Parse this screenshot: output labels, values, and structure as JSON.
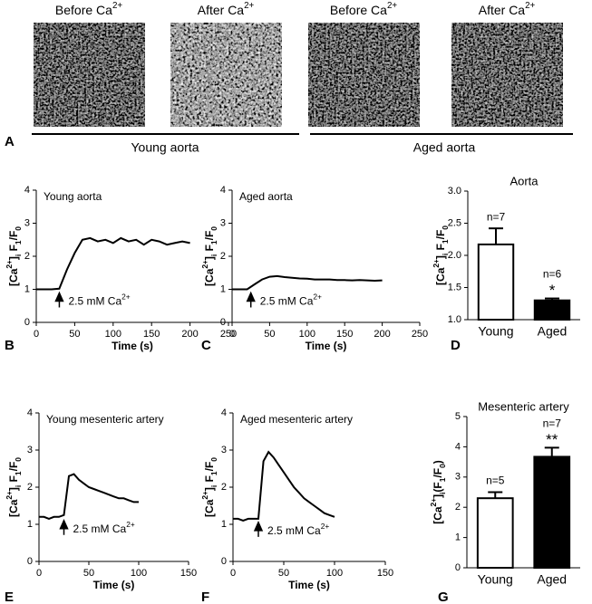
{
  "panel_a": {
    "label": "A",
    "images": [
      {
        "title": [
          {
            "text": "Before Ca"
          },
          {
            "text": "2+",
            "shift": "sup"
          }
        ]
      },
      {
        "title": [
          {
            "text": "After Ca"
          },
          {
            "text": "2+",
            "shift": "sup"
          }
        ]
      },
      {
        "title": [
          {
            "text": "Before Ca"
          },
          {
            "text": "2+",
            "shift": "sup"
          }
        ]
      },
      {
        "title": [
          {
            "text": "After Ca"
          },
          {
            "text": "2+",
            "shift": "sup"
          }
        ]
      }
    ],
    "groups": [
      "Young aorta",
      "Aged aorta"
    ]
  },
  "chart_data": [
    {
      "type": "line",
      "label": "B",
      "title": "Young aorta",
      "xlabel": "Time (s)",
      "ylabel": [
        {
          "text": "[Ca"
        },
        {
          "text": "2+",
          "shift": "sup"
        },
        {
          "text": "]"
        },
        {
          "text": "i",
          "shift": "sub"
        },
        {
          "text": " F"
        },
        {
          "text": "1",
          "shift": "sub"
        },
        {
          "text": "/F"
        },
        {
          "text": "0",
          "shift": "sub"
        }
      ],
      "x": [
        0,
        10,
        20,
        30,
        40,
        50,
        60,
        70,
        80,
        90,
        100,
        110,
        120,
        130,
        140,
        150,
        160,
        170,
        180,
        190,
        200
      ],
      "values": [
        1,
        1,
        1,
        1.02,
        1.6,
        2.1,
        2.5,
        2.55,
        2.45,
        2.5,
        2.4,
        2.55,
        2.45,
        2.5,
        2.35,
        2.5,
        2.45,
        2.35,
        2.4,
        2.45,
        2.4
      ],
      "color": "#000000",
      "xlim": [
        0,
        250
      ],
      "xticks": [
        0,
        50,
        100,
        150,
        200,
        250
      ],
      "ylim": [
        0,
        4
      ],
      "yticks": [
        0,
        1,
        2,
        3,
        4
      ],
      "annotation": {
        "x": 30,
        "y": 1,
        "text": [
          {
            "text": "2.5 mM Ca"
          },
          {
            "text": "2+",
            "shift": "sup"
          }
        ]
      }
    },
    {
      "type": "line",
      "label": "C",
      "title": "Aged aorta",
      "xlabel": "Time (s)",
      "ylabel": [
        {
          "text": "[Ca"
        },
        {
          "text": "2+",
          "shift": "sup"
        },
        {
          "text": "]"
        },
        {
          "text": "i",
          "shift": "sub"
        },
        {
          "text": " F"
        },
        {
          "text": "1",
          "shift": "sub"
        },
        {
          "text": "/F"
        },
        {
          "text": "0",
          "shift": "sub"
        }
      ],
      "x": [
        0,
        10,
        20,
        30,
        40,
        50,
        60,
        70,
        80,
        90,
        100,
        110,
        120,
        130,
        140,
        150,
        160,
        170,
        180,
        190,
        200
      ],
      "values": [
        1,
        1,
        1,
        1.15,
        1.3,
        1.38,
        1.4,
        1.37,
        1.35,
        1.33,
        1.32,
        1.3,
        1.3,
        1.3,
        1.28,
        1.28,
        1.27,
        1.28,
        1.27,
        1.26,
        1.27
      ],
      "color": "#000000",
      "xlim": [
        0,
        250
      ],
      "xticks": [
        0,
        50,
        100,
        150,
        200,
        250
      ],
      "ylim": [
        0,
        4
      ],
      "yticks": [
        0,
        1,
        2,
        3,
        4
      ],
      "annotation": {
        "x": 25,
        "y": 1,
        "text": [
          {
            "text": "2.5 mM Ca"
          },
          {
            "text": "2+",
            "shift": "sup"
          }
        ]
      }
    },
    {
      "type": "bar",
      "label": "D",
      "title": "Aorta",
      "ylabel": [
        {
          "text": "[Ca"
        },
        {
          "text": "2+",
          "shift": "sup"
        },
        {
          "text": "]"
        },
        {
          "text": "i",
          "shift": "sub"
        },
        {
          "text": " F"
        },
        {
          "text": "1",
          "shift": "sub"
        },
        {
          "text": "/F"
        },
        {
          "text": "0",
          "shift": "sub"
        }
      ],
      "categories": [
        "Young",
        "Aged"
      ],
      "values": [
        2.17,
        1.3
      ],
      "errors": [
        0.25,
        0.03
      ],
      "colors": [
        "#ffffff",
        "#000000"
      ],
      "n_labels": [
        "n=7",
        "n=6"
      ],
      "significance": [
        {
          "index": 1,
          "text": "*"
        }
      ],
      "ylim": [
        1,
        3
      ],
      "yticks": [
        {
          "value": 1,
          "label": "1.0"
        },
        1.5,
        {
          "value": 2,
          "label": "2.0"
        },
        2.5,
        {
          "value": 3,
          "label": "3.0"
        }
      ]
    },
    {
      "type": "line",
      "label": "E",
      "title": "Young mesenteric artery",
      "xlabel": "Time (s)",
      "ylabel": [
        {
          "text": "[Ca"
        },
        {
          "text": "2+",
          "shift": "sup"
        },
        {
          "text": "]"
        },
        {
          "text": "i",
          "shift": "sub"
        },
        {
          "text": " F"
        },
        {
          "text": "1",
          "shift": "sub"
        },
        {
          "text": "/F"
        },
        {
          "text": "0",
          "shift": "sub"
        }
      ],
      "x": [
        0,
        5,
        10,
        15,
        20,
        25,
        30,
        35,
        40,
        45,
        50,
        55,
        60,
        65,
        70,
        75,
        80,
        85,
        90,
        95,
        100
      ],
      "values": [
        1.2,
        1.2,
        1.15,
        1.2,
        1.2,
        1.25,
        2.3,
        2.35,
        2.2,
        2.1,
        2.0,
        1.95,
        1.9,
        1.85,
        1.8,
        1.75,
        1.7,
        1.7,
        1.65,
        1.6,
        1.6
      ],
      "color": "#000000",
      "xlim": [
        0,
        150
      ],
      "xticks": [
        0,
        50,
        100,
        150
      ],
      "ylim": [
        0,
        4
      ],
      "yticks": [
        0,
        1,
        2,
        3,
        4
      ],
      "annotation": {
        "x": 25,
        "y": 1.2,
        "text": [
          {
            "text": "2.5 mM Ca"
          },
          {
            "text": "2+",
            "shift": "sup"
          }
        ]
      }
    },
    {
      "type": "line",
      "label": "F",
      "title": "Aged mesenteric artery",
      "xlabel": "Time (s)",
      "ylabel": [
        {
          "text": "[Ca"
        },
        {
          "text": "2+",
          "shift": "sup"
        },
        {
          "text": "]"
        },
        {
          "text": "i",
          "shift": "sub"
        },
        {
          "text": " F"
        },
        {
          "text": "1",
          "shift": "sub"
        },
        {
          "text": "/F"
        },
        {
          "text": "0",
          "shift": "sub"
        }
      ],
      "x": [
        0,
        5,
        10,
        15,
        20,
        25,
        30,
        35,
        40,
        45,
        50,
        55,
        60,
        65,
        70,
        75,
        80,
        85,
        90,
        95,
        100
      ],
      "values": [
        1.15,
        1.15,
        1.1,
        1.15,
        1.15,
        1.15,
        2.7,
        2.95,
        2.8,
        2.6,
        2.4,
        2.2,
        2.0,
        1.85,
        1.7,
        1.6,
        1.5,
        1.4,
        1.3,
        1.25,
        1.2
      ],
      "color": "#000000",
      "xlim": [
        0,
        150
      ],
      "xticks": [
        0,
        50,
        100,
        150
      ],
      "ylim": [
        0,
        4
      ],
      "yticks": [
        0,
        1,
        2,
        3,
        4
      ],
      "annotation": {
        "x": 25,
        "y": 1.15,
        "text": [
          {
            "text": "2.5 mM Ca"
          },
          {
            "text": "2+",
            "shift": "sup"
          }
        ]
      }
    },
    {
      "type": "bar",
      "label": "G",
      "title": "Mesenteric artery",
      "ylabel": [
        {
          "text": "[Ca"
        },
        {
          "text": "2+",
          "shift": "sup"
        },
        {
          "text": "]"
        },
        {
          "text": "i",
          "shift": "sub"
        },
        {
          "text": "(F"
        },
        {
          "text": "1",
          "shift": "sub"
        },
        {
          "text": "/F"
        },
        {
          "text": "0",
          "shift": "sub"
        },
        {
          "text": ")"
        }
      ],
      "categories": [
        "Young",
        "Aged"
      ],
      "values": [
        2.3,
        3.67
      ],
      "errors": [
        0.2,
        0.3
      ],
      "colors": [
        "#ffffff",
        "#000000"
      ],
      "n_labels": [
        "n=5",
        "n=7"
      ],
      "significance": [
        {
          "index": 1,
          "text": "**"
        }
      ],
      "ylim": [
        0,
        5
      ],
      "yticks": [
        0,
        1,
        2,
        3,
        4,
        5
      ]
    }
  ]
}
